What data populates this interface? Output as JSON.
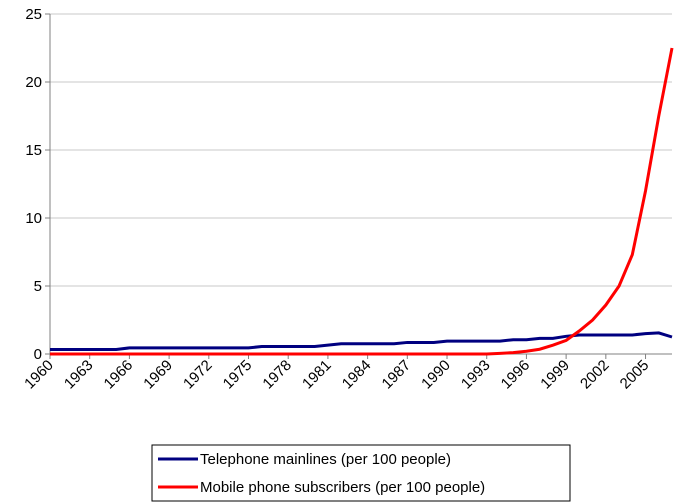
{
  "chart_data": {
    "type": "line",
    "x": [
      1960,
      1961,
      1962,
      1963,
      1964,
      1965,
      1966,
      1967,
      1968,
      1969,
      1970,
      1971,
      1972,
      1973,
      1974,
      1975,
      1976,
      1977,
      1978,
      1979,
      1980,
      1981,
      1982,
      1983,
      1984,
      1985,
      1986,
      1987,
      1988,
      1989,
      1990,
      1991,
      1992,
      1993,
      1994,
      1995,
      1996,
      1997,
      1998,
      1999,
      2000,
      2001,
      2002,
      2003,
      2004,
      2005,
      2006,
      2007
    ],
    "series": [
      {
        "name": "Telephone mainlines (per 100 people)",
        "color": "#000080",
        "values": [
          0.33,
          0.33,
          0.33,
          0.33,
          0.33,
          0.33,
          0.45,
          0.45,
          0.45,
          0.45,
          0.45,
          0.45,
          0.45,
          0.45,
          0.45,
          0.45,
          0.55,
          0.55,
          0.55,
          0.55,
          0.55,
          0.65,
          0.75,
          0.75,
          0.75,
          0.75,
          0.75,
          0.85,
          0.85,
          0.85,
          0.95,
          0.95,
          0.95,
          0.95,
          0.95,
          1.05,
          1.05,
          1.15,
          1.15,
          1.3,
          1.4,
          1.4,
          1.4,
          1.4,
          1.4,
          1.5,
          1.55,
          1.25
        ]
      },
      {
        "name": "Mobile phone subscribers (per 100 people)",
        "color": "#ff0000",
        "values": [
          0,
          0,
          0,
          0,
          0,
          0,
          0,
          0,
          0,
          0,
          0,
          0,
          0,
          0,
          0,
          0,
          0,
          0,
          0,
          0,
          0,
          0,
          0,
          0,
          0,
          0,
          0,
          0,
          0,
          0,
          0,
          0,
          0,
          0,
          0.05,
          0.1,
          0.2,
          0.35,
          0.65,
          1.0,
          1.7,
          2.5,
          3.6,
          5.0,
          7.3,
          12.0,
          17.5,
          22.5
        ]
      }
    ],
    "xlim": [
      1960,
      2007
    ],
    "xticks": [
      1960,
      1963,
      1966,
      1969,
      1972,
      1975,
      1978,
      1981,
      1984,
      1987,
      1990,
      1993,
      1996,
      1999,
      2002,
      2005
    ],
    "ylim": [
      0,
      25
    ],
    "yticks": [
      0,
      5,
      10,
      15,
      20,
      25
    ],
    "grid": true,
    "legend": "bottom"
  }
}
